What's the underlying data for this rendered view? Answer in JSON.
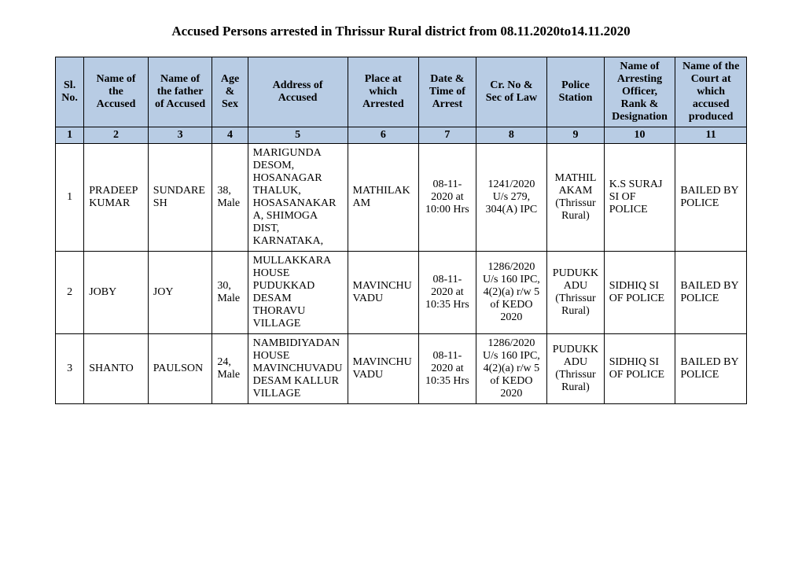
{
  "title": "Accused Persons arrested in   Thrissur Rural  district from   08.11.2020to14.11.2020",
  "headers": [
    "Sl. No.",
    "Name of the Accused",
    "Name of the father of Accused",
    "Age & Sex",
    "Address of Accused",
    "Place at which Arrested",
    "Date & Time of Arrest",
    "Cr. No & Sec of Law",
    "Police Station",
    "Name of Arresting Officer, Rank & Designation",
    "Name of the Court at which accused produced"
  ],
  "colnums": [
    "1",
    "2",
    "3",
    "4",
    "5",
    "6",
    "7",
    "8",
    "9",
    "10",
    "11"
  ],
  "rows": [
    {
      "sl": "1",
      "name": "PRADEEP KUMAR",
      "father": "SUNDARESH",
      "age": "38, Male",
      "address": "MARIGUNDA DESOM, HOSANAGAR THALUK, HOSASANAKARA, SHIMOGA DIST, KARNATAKA,",
      "place": "MATHILAKAM",
      "datetime": "08-11-2020 at 10:00 Hrs",
      "cr": "1241/2020 U/s 279, 304(A) IPC",
      "ps": "MATHILAKAM (Thrissur Rural)",
      "officer": "K.S SURAJ SI OF POLICE",
      "court": "BAILED BY POLICE"
    },
    {
      "sl": "2",
      "name": "JOBY",
      "father": "JOY",
      "age": "30, Male",
      "address": "MULLAKKARA HOUSE PUDUKKAD DESAM THORAVU VILLAGE",
      "place": "MAVINCHUVADU",
      "datetime": "08-11-2020 at 10:35 Hrs",
      "cr": "1286/2020 U/s 160 IPC, 4(2)(a) r/w 5 of KEDO 2020",
      "ps": "PUDUKKADU (Thrissur Rural)",
      "officer": "SIDHIQ SI OF POLICE",
      "court": "BAILED BY POLICE"
    },
    {
      "sl": "3",
      "name": "SHANTO",
      "father": "PAULSON",
      "age": "24, Male",
      "address": "NAMBIDIYADAN HOUSE MAVINCHUVADU DESAM KALLUR VILLAGE",
      "place": "MAVINCHUVADU",
      "datetime": "08-11-2020 at 10:35 Hrs",
      "cr": "1286/2020 U/s 160 IPC, 4(2)(a) r/w 5 of KEDO 2020",
      "ps": "PUDUKKADU (Thrissur Rural)",
      "officer": "SIDHIQ SI OF POLICE",
      "court": "BAILED BY POLICE"
    }
  ]
}
